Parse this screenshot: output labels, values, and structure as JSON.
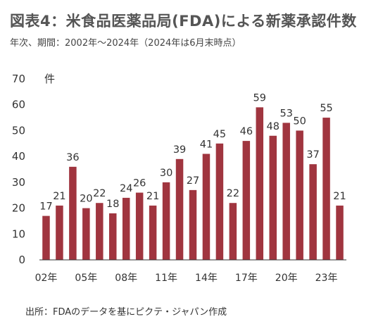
{
  "title": "図表4：米食品医薬品局(FDA)による新薬承認件数",
  "subtitle": "年次、期間：2002年～2024年（2024年は6月末時点）",
  "source": "出所：FDAのデータを基にピクテ・ジャパン作成",
  "colors": {
    "bar": "#a0353f",
    "axis": "#333333",
    "text": "#333333"
  },
  "chart_data": {
    "type": "bar",
    "categories": [
      "2002",
      "2003",
      "2004",
      "2005",
      "2006",
      "2007",
      "2008",
      "2009",
      "2010",
      "2011",
      "2012",
      "2013",
      "2014",
      "2015",
      "2016",
      "2017",
      "2018",
      "2019",
      "2020",
      "2021",
      "2022",
      "2023",
      "2024"
    ],
    "values": [
      17,
      21,
      36,
      20,
      22,
      18,
      24,
      26,
      21,
      30,
      39,
      27,
      41,
      45,
      22,
      46,
      59,
      48,
      53,
      50,
      37,
      55,
      21
    ],
    "x_tick_labels": [
      {
        "category": "2002",
        "label": "02年"
      },
      {
        "category": "2005",
        "label": "05年"
      },
      {
        "category": "2008",
        "label": "08年"
      },
      {
        "category": "2011",
        "label": "11年"
      },
      {
        "category": "2014",
        "label": "14年"
      },
      {
        "category": "2017",
        "label": "17年"
      },
      {
        "category": "2020",
        "label": "20年"
      },
      {
        "category": "2023",
        "label": "23年"
      }
    ],
    "y_ticks": [
      0,
      10,
      20,
      30,
      40,
      50,
      60,
      70
    ],
    "ylim": [
      0,
      70
    ],
    "ylabel": "件",
    "grid": false,
    "data_labels": true
  }
}
